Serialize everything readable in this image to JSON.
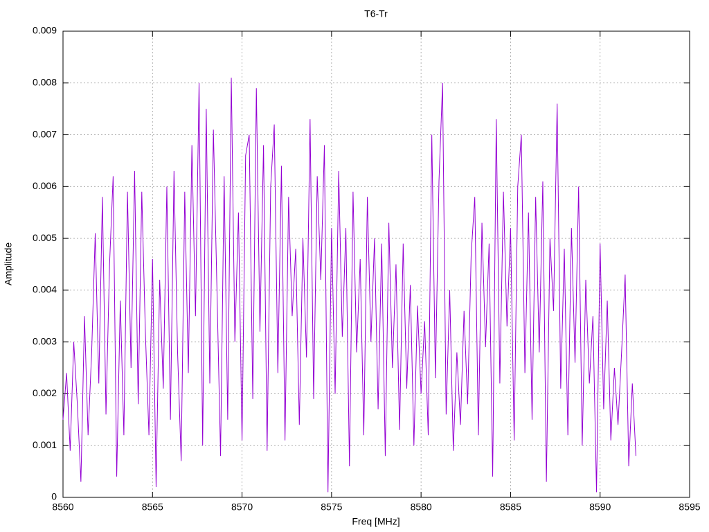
{
  "chart_data": {
    "type": "line",
    "title": "T6-Tr",
    "xlabel": "Freq [MHz]",
    "ylabel": "Amplitude",
    "color": "#9400d3",
    "grid": true,
    "xlim": [
      8560,
      8595
    ],
    "xticks": [
      8560,
      8565,
      8570,
      8575,
      8580,
      8585,
      8590,
      8595
    ],
    "ylim": [
      0,
      0.009
    ],
    "yticks": [
      0,
      0.001,
      0.002,
      0.003,
      0.004,
      0.005,
      0.006,
      0.007,
      0.008,
      0.009
    ],
    "x": [
      8560,
      8560.2,
      8560.4,
      8560.6,
      8560.8,
      8561,
      8561.2,
      8561.4,
      8561.6,
      8561.8,
      8562,
      8562.2,
      8562.4,
      8562.6,
      8562.8,
      8563,
      8563.2,
      8563.4,
      8563.6,
      8563.8,
      8564,
      8564.2,
      8564.4,
      8564.6,
      8564.8,
      8565,
      8565.2,
      8565.4,
      8565.6,
      8565.8,
      8566,
      8566.2,
      8566.4,
      8566.6,
      8566.8,
      8567,
      8567.2,
      8567.4,
      8567.6,
      8567.8,
      8568,
      8568.2,
      8568.4,
      8568.6,
      8568.8,
      8569,
      8569.2,
      8569.4,
      8569.6,
      8569.8,
      8570,
      8570.2,
      8570.4,
      8570.6,
      8570.8,
      8571,
      8571.2,
      8571.4,
      8571.6,
      8571.8,
      8572,
      8572.2,
      8572.4,
      8572.6,
      8572.8,
      8573,
      8573.2,
      8573.4,
      8573.6,
      8573.8,
      8574,
      8574.2,
      8574.4,
      8574.6,
      8574.8,
      8575,
      8575.2,
      8575.4,
      8575.6,
      8575.8,
      8576,
      8576.2,
      8576.4,
      8576.6,
      8576.8,
      8577,
      8577.2,
      8577.4,
      8577.6,
      8577.8,
      8578,
      8578.2,
      8578.4,
      8578.6,
      8578.8,
      8579,
      8579.2,
      8579.4,
      8579.6,
      8579.8,
      8580,
      8580.2,
      8580.4,
      8580.6,
      8580.8,
      8581,
      8581.2,
      8581.4,
      8581.6,
      8581.8,
      8582,
      8582.2,
      8582.4,
      8582.6,
      8582.8,
      8583,
      8583.2,
      8583.4,
      8583.6,
      8583.8,
      8584,
      8584.2,
      8584.4,
      8584.6,
      8584.8,
      8585,
      8585.2,
      8585.4,
      8585.6,
      8585.8,
      8586,
      8586.2,
      8586.4,
      8586.6,
      8586.8,
      8587,
      8587.2,
      8587.4,
      8587.6,
      8587.8,
      8588,
      8588.2,
      8588.4,
      8588.6,
      8588.8,
      8589,
      8589.2,
      8589.4,
      8589.6,
      8589.8,
      8590,
      8590.2,
      8590.4,
      8590.6,
      8590.8,
      8591,
      8591.2,
      8591.4,
      8591.6,
      8591.8,
      8592
    ],
    "values": [
      0.0015,
      0.0024,
      0.0009,
      0.003,
      0.0018,
      0.0003,
      0.0035,
      0.0012,
      0.0028,
      0.0051,
      0.0022,
      0.0058,
      0.0016,
      0.0045,
      0.0062,
      0.0004,
      0.0038,
      0.0012,
      0.0059,
      0.0025,
      0.0063,
      0.0018,
      0.0059,
      0.0032,
      0.0012,
      0.0046,
      0.0002,
      0.0042,
      0.0021,
      0.006,
      0.0015,
      0.0063,
      0.0028,
      0.0007,
      0.0059,
      0.0024,
      0.0068,
      0.0035,
      0.008,
      0.001,
      0.0075,
      0.0022,
      0.0071,
      0.004,
      0.0008,
      0.0062,
      0.0015,
      0.0081,
      0.003,
      0.0055,
      0.0011,
      0.0066,
      0.007,
      0.0019,
      0.0079,
      0.0032,
      0.0068,
      0.0009,
      0.006,
      0.0072,
      0.0024,
      0.0064,
      0.0011,
      0.0058,
      0.0035,
      0.0048,
      0.0014,
      0.005,
      0.0027,
      0.0073,
      0.0019,
      0.0062,
      0.0042,
      0.0068,
      0.0001,
      0.0052,
      0.002,
      0.0063,
      0.0031,
      0.0052,
      0.0006,
      0.0059,
      0.0028,
      0.0046,
      0.0012,
      0.0058,
      0.003,
      0.005,
      0.0017,
      0.0049,
      0.0008,
      0.0053,
      0.0025,
      0.0045,
      0.0013,
      0.0049,
      0.0021,
      0.0041,
      0.001,
      0.0037,
      0.002,
      0.0034,
      0.0012,
      0.007,
      0.0023,
      0.0061,
      0.008,
      0.0016,
      0.004,
      0.0009,
      0.0028,
      0.0014,
      0.0036,
      0.0018,
      0.0047,
      0.0058,
      0.0012,
      0.0053,
      0.0029,
      0.0049,
      0.0004,
      0.0073,
      0.0022,
      0.0059,
      0.0033,
      0.0052,
      0.0011,
      0.006,
      0.007,
      0.0024,
      0.0055,
      0.0015,
      0.0058,
      0.0028,
      0.0061,
      0.0003,
      0.005,
      0.0036,
      0.0076,
      0.0021,
      0.0048,
      0.0012,
      0.0052,
      0.0026,
      0.006,
      0.001,
      0.0042,
      0.0022,
      0.0035,
      0.0001,
      0.0049,
      0.0017,
      0.0038,
      0.0011,
      0.0025,
      0.0014,
      0.0028,
      0.0043,
      0.0006,
      0.0022,
      0.0008
    ]
  }
}
